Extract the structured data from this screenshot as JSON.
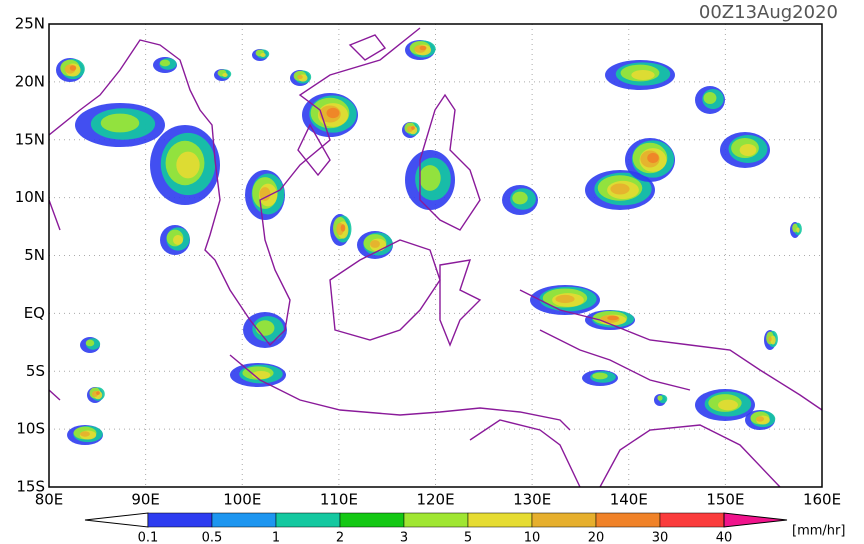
{
  "title": "00Z13Aug2020",
  "lat_labels": [
    "25N",
    "20N",
    "15N",
    "10N",
    "5N",
    "EQ",
    "5S",
    "10S",
    "15S"
  ],
  "lon_labels": [
    "80E",
    "90E",
    "100E",
    "110E",
    "120E",
    "130E",
    "140E",
    "150E",
    "160E"
  ],
  "colorbar": {
    "labels": [
      "0.1",
      "0.5",
      "1",
      "2",
      "3",
      "5",
      "10",
      "20",
      "30",
      "40"
    ],
    "colors": [
      "#ffffff",
      "#2d3cf0",
      "#1e96f0",
      "#14c8a0",
      "#14c814",
      "#a0e632",
      "#e6dc32",
      "#e6af2d",
      "#f08228",
      "#fa3c3c",
      "#f0148c"
    ],
    "unit": "[mm/hr]"
  }
}
